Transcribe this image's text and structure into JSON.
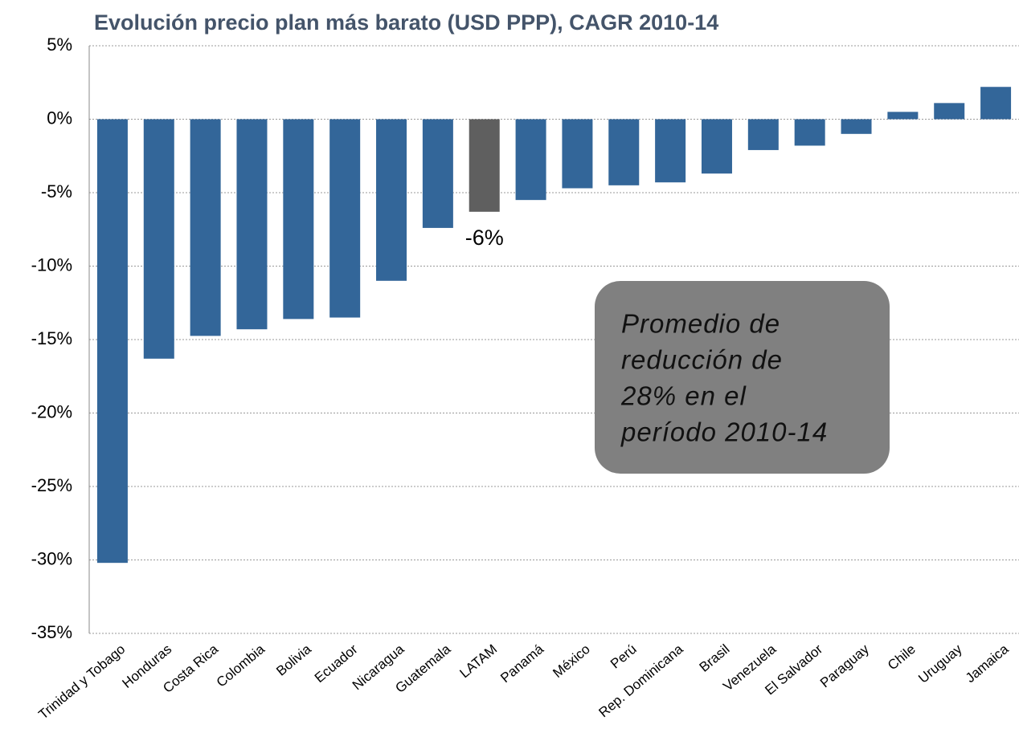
{
  "chart_data": {
    "type": "bar",
    "title": "Evolución precio plan más barato (USD PPP), CAGR 2010-14",
    "categories": [
      "Trinidad y Tobago",
      "Honduras",
      "Costa Rica",
      "Colombia",
      "Bolivia",
      "Ecuador",
      "Nicaragua",
      "Guatemala",
      "LATAM",
      "Panamá",
      "México",
      "Perú",
      "Rep. Dominicana",
      "Brasil",
      "Venezuela",
      "El Salvador",
      "Paraguay",
      "Chile",
      "Uruguay",
      "Jamaica"
    ],
    "values": [
      -30.2,
      -16.3,
      -14.75,
      -14.3,
      -13.6,
      -13.5,
      -11.0,
      -7.4,
      -6.3,
      -5.5,
      -4.7,
      -4.5,
      -4.3,
      -3.7,
      -2.1,
      -1.8,
      -1.0,
      0.5,
      1.1,
      2.2
    ],
    "value_labels": [
      null,
      null,
      null,
      null,
      null,
      null,
      null,
      null,
      "-6%",
      null,
      null,
      null,
      null,
      null,
      null,
      null,
      null,
      null,
      null,
      null
    ],
    "colors": [
      "#336699",
      "#336699",
      "#336699",
      "#336699",
      "#336699",
      "#336699",
      "#336699",
      "#336699",
      "#5f5f5f",
      "#336699",
      "#336699",
      "#336699",
      "#336699",
      "#336699",
      "#336699",
      "#336699",
      "#336699",
      "#336699",
      "#336699",
      "#336699"
    ],
    "ylim": [
      -35,
      5
    ],
    "yticks": [
      {
        "value": 5,
        "label": "5%"
      },
      {
        "value": 0,
        "label": "0%"
      },
      {
        "value": -5,
        "label": "-5%"
      },
      {
        "value": -10,
        "label": "-10%"
      },
      {
        "value": -15,
        "label": "-15%"
      },
      {
        "value": -20,
        "label": "-20%"
      },
      {
        "value": -25,
        "label": "-25%"
      },
      {
        "value": -30,
        "label": "-30%"
      },
      {
        "value": -35,
        "label": "-35%"
      }
    ],
    "grid": true,
    "annotation": [
      "Promedio de",
      "reducción de",
      "28% en el",
      "período 2010-14"
    ]
  }
}
